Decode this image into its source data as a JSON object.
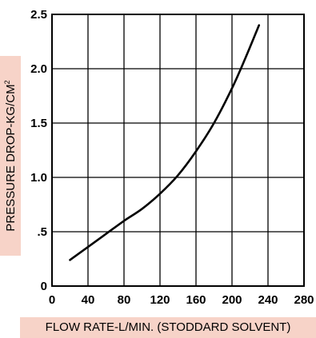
{
  "chart_data": {
    "type": "line",
    "title": "",
    "xlabel": "FLOW RATE-L/MIN. (STODDARD SOLVENT)",
    "ylabel": "PRESSURE DROP-KG/CM",
    "ylabel_superscript": "2",
    "xlim": [
      0,
      280
    ],
    "ylim": [
      0,
      2.5
    ],
    "x_ticks": [
      "0",
      "40",
      "80",
      "120",
      "160",
      "200",
      "240",
      "280"
    ],
    "y_ticks": [
      "0",
      ".5",
      "1.0",
      "1.5",
      "2.0",
      "2.5"
    ],
    "grid": true,
    "legend": "none",
    "series": [
      {
        "x": [
          20,
          40,
          60,
          80,
          100,
          120,
          140,
          160,
          180,
          200,
          215,
          230
        ],
        "y": [
          0.24,
          0.36,
          0.48,
          0.6,
          0.71,
          0.85,
          1.02,
          1.24,
          1.5,
          1.82,
          2.1,
          2.4
        ]
      }
    ],
    "colors": {
      "line": "#000000",
      "grid": "#000000",
      "label_background": "#f7d3c8"
    }
  }
}
